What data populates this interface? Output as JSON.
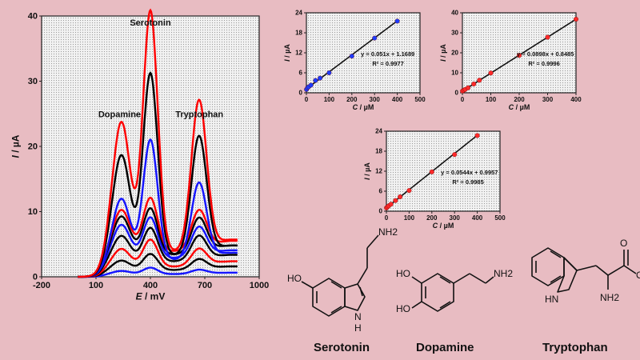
{
  "chart_data": [
    {
      "type": "line",
      "xlabel": "E / mV",
      "ylabel": "I / µA",
      "xlim": [
        -200,
        1000
      ],
      "ylim": [
        0,
        40
      ],
      "xticks": [
        "-200",
        "100",
        "400",
        "700",
        "1000"
      ],
      "yticks": [
        "0",
        "10",
        "20",
        "30",
        "40"
      ],
      "annotations": [
        {
          "text": "Serotonin",
          "x": 400,
          "y": 38.5
        },
        {
          "text": "Dopamine",
          "x": 230,
          "y": 24.5
        },
        {
          "text": "Tryptophan",
          "x": 670,
          "y": 24.5
        }
      ],
      "series_colors": [
        "#1414ff",
        "#000000",
        "#ff0000",
        "#1414ff",
        "#000000",
        "#1414ff",
        "#ff0000"
      ],
      "series_peaks": [
        {
          "base": 0.4,
          "tail": 0.6,
          "p1": 0.5,
          "p2": 1.0,
          "p3": 0.6
        },
        {
          "base": 1.0,
          "tail": 1.5,
          "p1": 1.5,
          "p2": 2.5,
          "p3": 1.5
        },
        {
          "base": 1.5,
          "tail": 2.2,
          "p1": 2.8,
          "p2": 4.2,
          "p3": 2.5
        },
        {
          "base": 2.3,
          "tail": 2.7,
          "p1": 4.0,
          "p2": 5.2,
          "p3": 3.6
        },
        {
          "base": 2.8,
          "tail": 3.2,
          "p1": 5.2,
          "p2": 6.3,
          "p3": 4.4
        },
        {
          "base": 3.3,
          "tail": 3.8,
          "p1": 6.0,
          "p2": 7.2,
          "p3": 5.2
        },
        {
          "base": 3.8,
          "tail": 4.3,
          "p1": 6.5,
          "p2": 8.3,
          "p3": 5.8
        },
        {
          "base": 2.5,
          "tail": 3.0,
          "p1": 9.5,
          "p2": 18.5,
          "p3": 11.5
        },
        {
          "base": 3.2,
          "tail": 4.0,
          "p1": 15.5,
          "p2": 28.0,
          "p3": 17.8
        },
        {
          "base": 3.8,
          "tail": 4.8,
          "p1": 20.0,
          "p2": 37.0,
          "p3": 22.6
        }
      ],
      "series_color_index": [
        1,
        0,
        2,
        0,
        1,
        0,
        2,
        1,
        0,
        2
      ]
    },
    {
      "type": "scatter",
      "xlabel": "C / µM",
      "ylabel": "I / µA",
      "xlim": [
        0,
        500
      ],
      "ylim": [
        0,
        24
      ],
      "xticks": [
        "0",
        "100",
        "200",
        "300",
        "400",
        "500"
      ],
      "yticks": [
        "0",
        "6",
        "12",
        "18",
        "24"
      ],
      "equation": "y = 0.051x + 1.1689",
      "r2": "R² = 0.9977",
      "marker_color": "#1e3cff",
      "slope": 0.051,
      "intercept": 1.1689,
      "x": [
        0.5,
        5,
        10,
        20,
        40,
        60,
        100,
        200,
        300,
        400
      ],
      "y": [
        1.0,
        1.5,
        1.8,
        2.3,
        3.7,
        4.4,
        6.0,
        11.0,
        16.4,
        21.5
      ]
    },
    {
      "type": "scatter",
      "xlabel": "C / µM",
      "ylabel": "I / µA",
      "xlim": [
        0,
        400
      ],
      "ylim": [
        0,
        40
      ],
      "xticks": [
        "0",
        "100",
        "200",
        "300",
        "400"
      ],
      "yticks": [
        "0",
        "10",
        "20",
        "30",
        "40"
      ],
      "equation": "y = 0.0898x + 0.8485",
      "r2": "R² = 0.9996",
      "marker_color": "#ff2a2a",
      "slope": 0.0898,
      "intercept": 0.8485,
      "x": [
        0.5,
        5,
        10,
        20,
        40,
        60,
        100,
        200,
        300,
        400
      ],
      "y": [
        0.9,
        1.3,
        1.7,
        2.5,
        4.4,
        6.3,
        9.9,
        18.7,
        27.8,
        36.8
      ]
    },
    {
      "type": "scatter",
      "xlabel": "C / µM",
      "ylabel": "I / µA",
      "xlim": [
        0,
        500
      ],
      "ylim": [
        0,
        24
      ],
      "xticks": [
        "0",
        "100",
        "200",
        "300",
        "400",
        "500"
      ],
      "yticks": [
        "0",
        "6",
        "12",
        "18",
        "24"
      ],
      "equation": "y = 0.0544x + 0.9957",
      "r2": "R² = 0.9985",
      "marker_color": "#ff2a2a",
      "slope": 0.0544,
      "intercept": 0.9957,
      "x": [
        0.5,
        5,
        10,
        20,
        40,
        60,
        100,
        200,
        300,
        400
      ],
      "y": [
        1.0,
        1.3,
        1.6,
        2.1,
        3.2,
        4.3,
        6.2,
        11.8,
        17.0,
        22.7
      ]
    }
  ],
  "molecules": {
    "serotonin": {
      "name": "Serotonin",
      "ho": "HO",
      "nh2": "NH2",
      "nh": "N",
      "h": "H"
    },
    "dopamine": {
      "name": "Dopamine",
      "ho1": "HO",
      "ho2": "HO",
      "nh2": "NH2"
    },
    "tryptophan": {
      "name": "Tryptophan",
      "oh": "OH",
      "o": "O",
      "nh2": "NH2",
      "hn": "HN"
    }
  }
}
